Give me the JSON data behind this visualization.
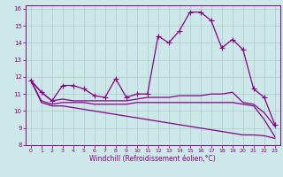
{
  "xlabel": "Windchill (Refroidissement éolien,°C)",
  "background_color": "#cce8e8",
  "grid_color": "#aacccc",
  "line_color": "#880088",
  "xlim": [
    -0.5,
    23.5
  ],
  "ylim": [
    8,
    16.2
  ],
  "xticks": [
    0,
    1,
    2,
    3,
    4,
    5,
    6,
    7,
    8,
    9,
    10,
    11,
    12,
    13,
    14,
    15,
    16,
    17,
    18,
    19,
    20,
    21,
    22,
    23
  ],
  "yticks": [
    8,
    9,
    10,
    11,
    12,
    13,
    14,
    15,
    16
  ],
  "series": [
    {
      "y": [
        11.8,
        11.1,
        10.6,
        11.5,
        11.5,
        11.3,
        10.9,
        10.8,
        11.9,
        10.8,
        11.0,
        11.0,
        14.4,
        14.0,
        14.7,
        15.8,
        15.8,
        15.3,
        13.7,
        14.2,
        13.6,
        11.3,
        10.8,
        9.2
      ],
      "marker": "+",
      "linestyle": "-",
      "linewidth": 0.9,
      "markersize": 4
    },
    {
      "y": [
        11.8,
        11.1,
        10.6,
        10.7,
        10.6,
        10.6,
        10.6,
        10.6,
        10.6,
        10.6,
        10.7,
        10.8,
        10.8,
        10.8,
        10.9,
        10.9,
        10.9,
        11.0,
        11.0,
        11.1,
        10.5,
        10.4,
        9.9,
        9.1
      ],
      "marker": "None",
      "linestyle": "-",
      "linewidth": 0.9,
      "markersize": 0
    },
    {
      "y": [
        11.8,
        10.6,
        10.4,
        10.5,
        10.5,
        10.5,
        10.4,
        10.4,
        10.4,
        10.4,
        10.5,
        10.5,
        10.5,
        10.5,
        10.5,
        10.5,
        10.5,
        10.5,
        10.5,
        10.5,
        10.4,
        10.3,
        9.5,
        8.5
      ],
      "marker": "None",
      "linestyle": "-",
      "linewidth": 0.9,
      "markersize": 0
    },
    {
      "y": [
        11.8,
        10.5,
        10.3,
        10.3,
        10.2,
        10.1,
        10.0,
        9.9,
        9.8,
        9.7,
        9.6,
        9.5,
        9.4,
        9.3,
        9.2,
        9.1,
        9.0,
        8.9,
        8.8,
        8.7,
        8.6,
        8.6,
        8.55,
        8.4
      ],
      "marker": "None",
      "linestyle": "-",
      "linewidth": 0.9,
      "markersize": 0
    }
  ]
}
